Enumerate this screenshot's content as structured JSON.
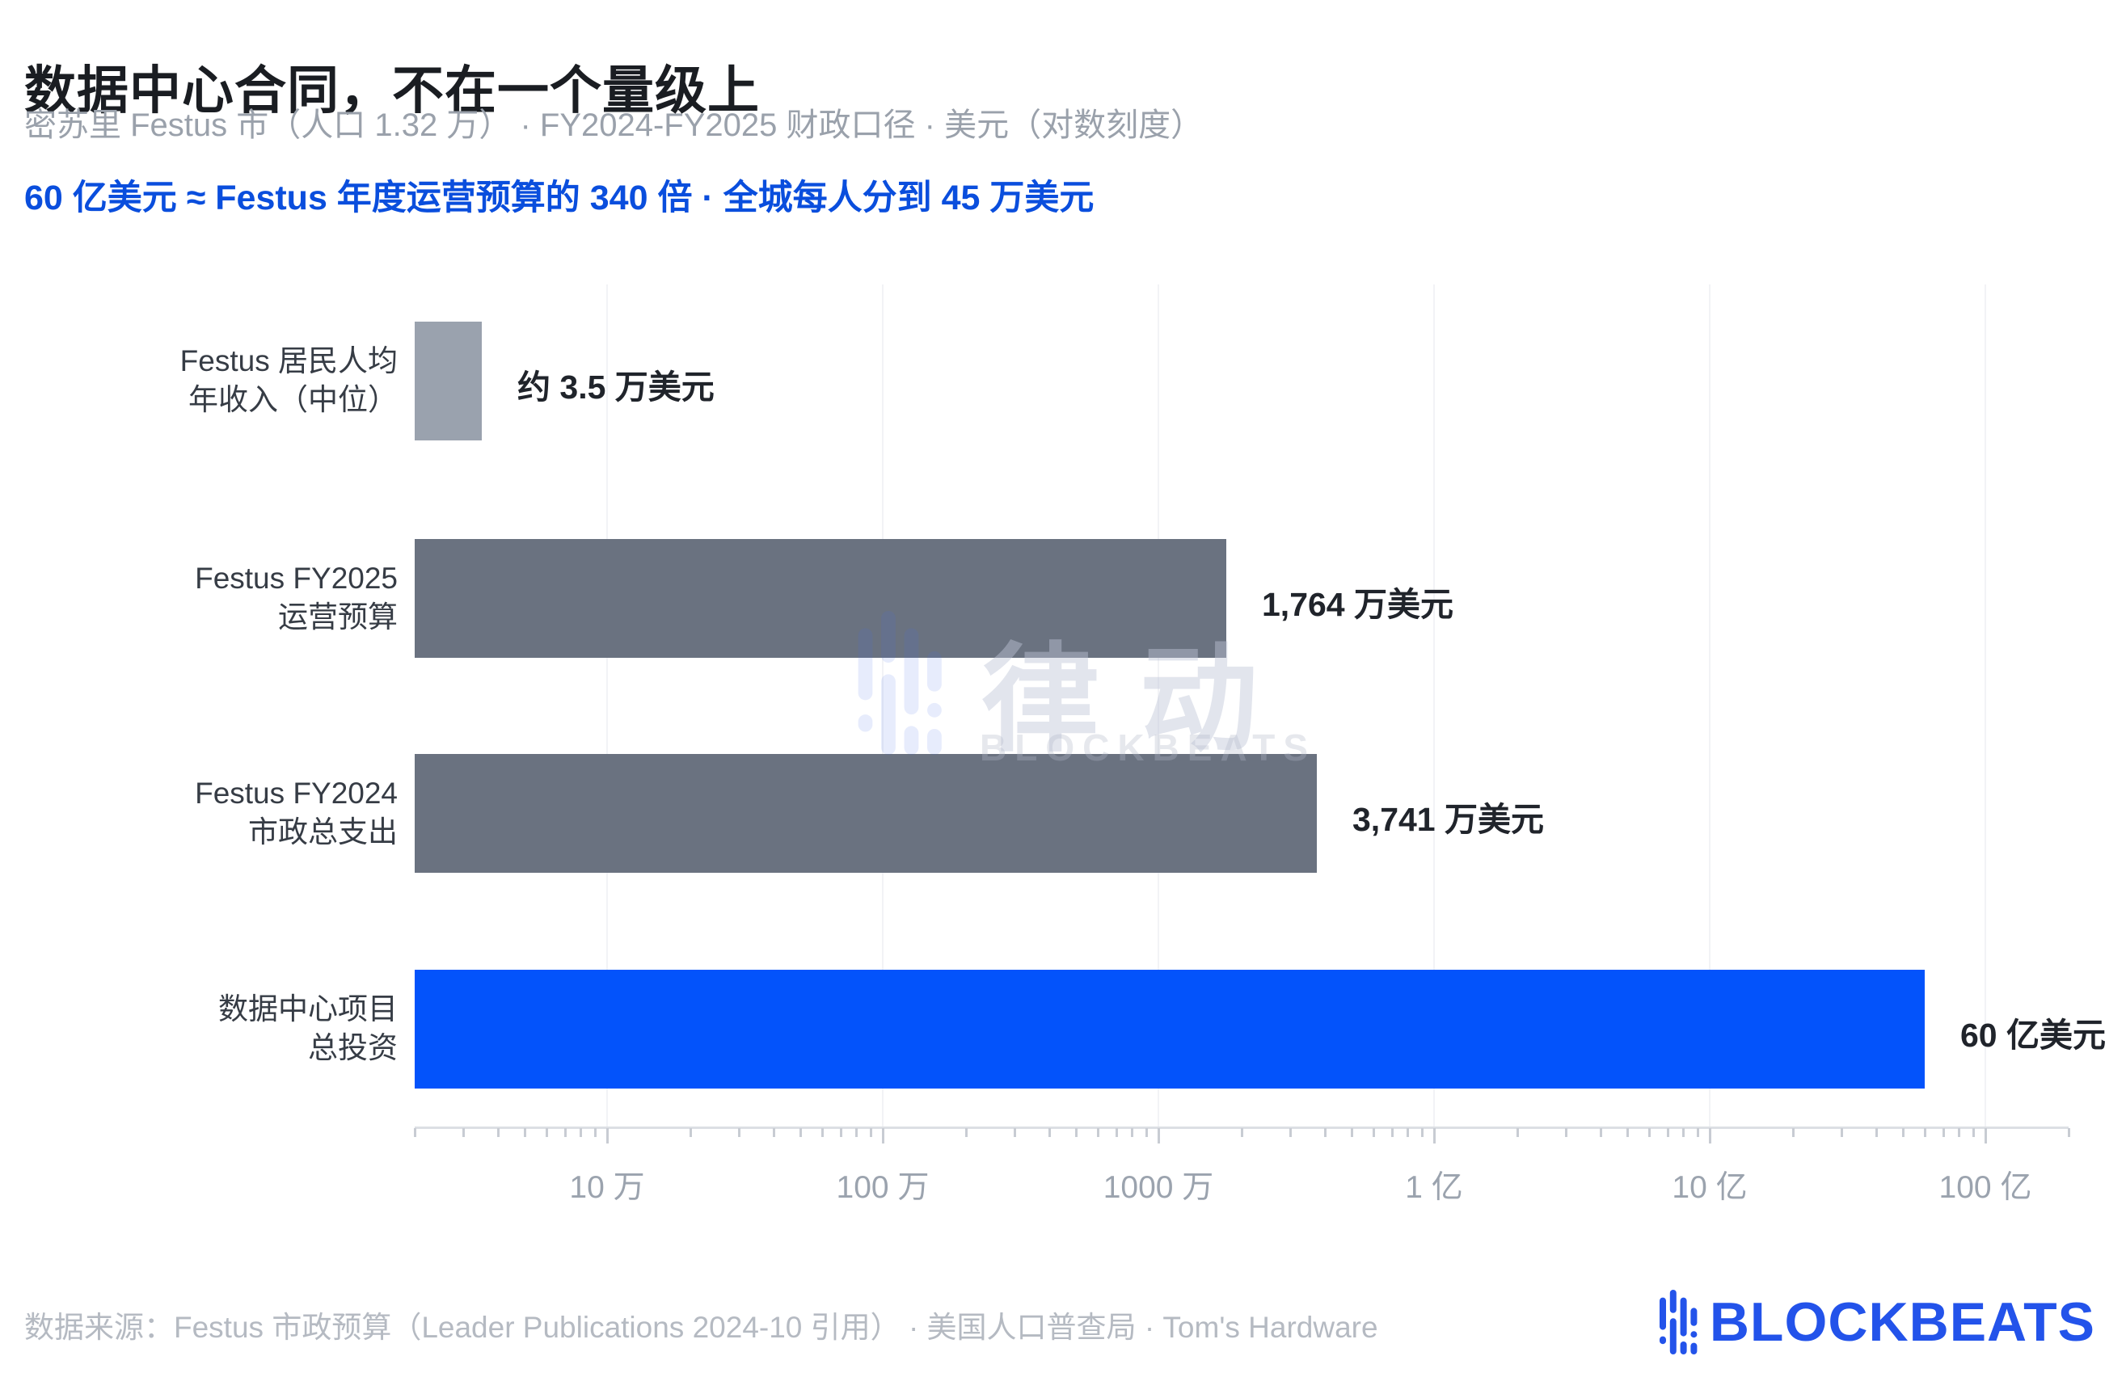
{
  "header": {
    "title": "数据中心合同，不在一个量级上",
    "subtitle": "密苏里 Festus 市（人口 1.32 万） · FY2024-FY2025 财政口径 · 美元（对数刻度）",
    "highlight": "60 亿美元 ≈ Festus 年度运营预算的 340 倍 · 全城每人分到 45 万美元"
  },
  "watermark": {
    "cn": "律动",
    "en": "BLOCKBEATS"
  },
  "footer": {
    "source": "数据来源：Festus 市政预算（Leader Publications 2024-10 引用） · 美国人口普查局 · Tom's Hardware",
    "logo_text": "BLOCKBEATS"
  },
  "colors": {
    "bar_gray_light": "#9aa2ae",
    "bar_gray": "#6a7280",
    "bar_blue": "#0353fb",
    "highlight_text": "#0a4edd",
    "logo_blue": "#2353ea"
  },
  "chart_data": {
    "type": "bar",
    "orientation": "horizontal",
    "x_scale": "log",
    "x_domain": [
      20000,
      20000000000
    ],
    "grid": true,
    "unit": "美元",
    "categories": [
      [
        "Festus 居民人均",
        "年收入（中位）"
      ],
      [
        "Festus FY2025",
        "运营预算"
      ],
      [
        "Festus FY2024",
        "市政总支出"
      ],
      [
        "数据中心项目",
        "总投资"
      ]
    ],
    "values": [
      35000,
      17640000,
      37410000,
      6000000000
    ],
    "value_labels": [
      "约 3.5 万美元",
      "1,764 万美元",
      "3,741 万美元",
      "60 亿美元"
    ],
    "bar_color_keys": [
      "bar_gray_light",
      "bar_gray",
      "bar_gray",
      "bar_blue"
    ],
    "x_ticks": [
      {
        "value": 100000,
        "label": "10 万"
      },
      {
        "value": 1000000,
        "label": "100 万"
      },
      {
        "value": 10000000,
        "label": "1000 万"
      },
      {
        "value": 100000000,
        "label": "1 亿"
      },
      {
        "value": 1000000000,
        "label": "10 亿"
      },
      {
        "value": 10000000000,
        "label": "100 亿"
      }
    ]
  }
}
